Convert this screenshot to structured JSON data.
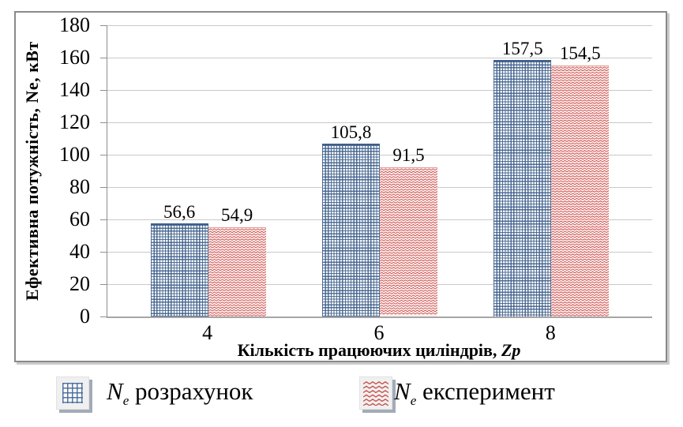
{
  "chart_data": {
    "type": "bar",
    "categories": [
      "4",
      "6",
      "8"
    ],
    "series": [
      {
        "name": "Ne розрахунок",
        "values": [
          56.6,
          105.8,
          157.5
        ],
        "display_labels": [
          "56,6",
          "105,8",
          "157,5"
        ],
        "pattern": "blue-crosshatch-grid",
        "line_color": "#3e5f8a"
      },
      {
        "name": "Ne експеримент",
        "values": [
          54.9,
          91.5,
          154.5
        ],
        "display_labels": [
          "54,9",
          "91,5",
          "154,5"
        ],
        "pattern": "red-zigzag-waves",
        "line_color": "#c9534f"
      }
    ],
    "title": "",
    "xlabel": "Кількість працюючих циліндрів, Zp",
    "ylabel": "Ефективна потужність, Ne, кВт",
    "ylim": [
      0,
      180
    ],
    "ytick_step": 20,
    "grid": true,
    "legend_position": "bottom"
  },
  "axes": {
    "y_ticks": [
      "180",
      "160",
      "140",
      "120",
      "100",
      "80",
      "60",
      "40",
      "20",
      "0"
    ],
    "x_ticks": [
      "4",
      "6",
      "8"
    ],
    "y_title": "Ефективна потужність, Ne, кВт",
    "x_title_main": "Кількість працюючих циліндрів, ",
    "x_title_var": "Zp"
  },
  "legend": {
    "items": [
      {
        "symbol": "N",
        "sub": "e",
        "label": " розрахунок",
        "pattern": "blue-crosshatch-grid"
      },
      {
        "symbol": "N",
        "sub": "e",
        "label": " експеримент",
        "pattern": "red-zigzag-waves"
      }
    ]
  },
  "colors": {
    "series_blue": "#3e5f8a",
    "series_blue_bg": "#fafbfd",
    "series_red": "#c9534f",
    "series_red_bg": "#fdefee",
    "gridline": "#c9c9c9",
    "axis_line": "#8f8f8f",
    "frame_border": "#8a8a8a",
    "legend_swatch_bg": "#f0f0f0",
    "legend_swatch_shadow": "#a3abb9"
  }
}
